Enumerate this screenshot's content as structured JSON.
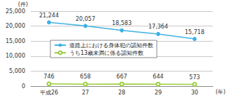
{
  "chart_data": {
    "type": "line",
    "xlabel": "(年)",
    "ylabel": "(件)",
    "categories": [
      "平成26",
      "27",
      "28",
      "29",
      "30"
    ],
    "series": [
      {
        "name": "道路上における身体犯の認知件数",
        "color": "#3db1e3",
        "marker": "circle",
        "values": [
          21244,
          20057,
          18583,
          17364,
          15718
        ],
        "value_labels": [
          "21,244",
          "20,057",
          "18,583",
          "17,364",
          "15,718"
        ]
      },
      {
        "name": "うち13歳未満に係る認知件数",
        "color": "#9ccc3c",
        "marker": "open_circle",
        "values": [
          746,
          658,
          667,
          644,
          573
        ]
      }
    ],
    "ylim": [
      0,
      25000
    ],
    "yticks": [
      0,
      {
        "value": 5000,
        "label": "5,000"
      },
      {
        "value": 10000,
        "label": "10,000"
      },
      {
        "value": 15000,
        "label": "15,000"
      },
      {
        "value": 20000,
        "label": "20,000"
      },
      {
        "value": 25000,
        "label": "25,000"
      }
    ],
    "grid": true,
    "legend": "center",
    "data_labels": true
  }
}
